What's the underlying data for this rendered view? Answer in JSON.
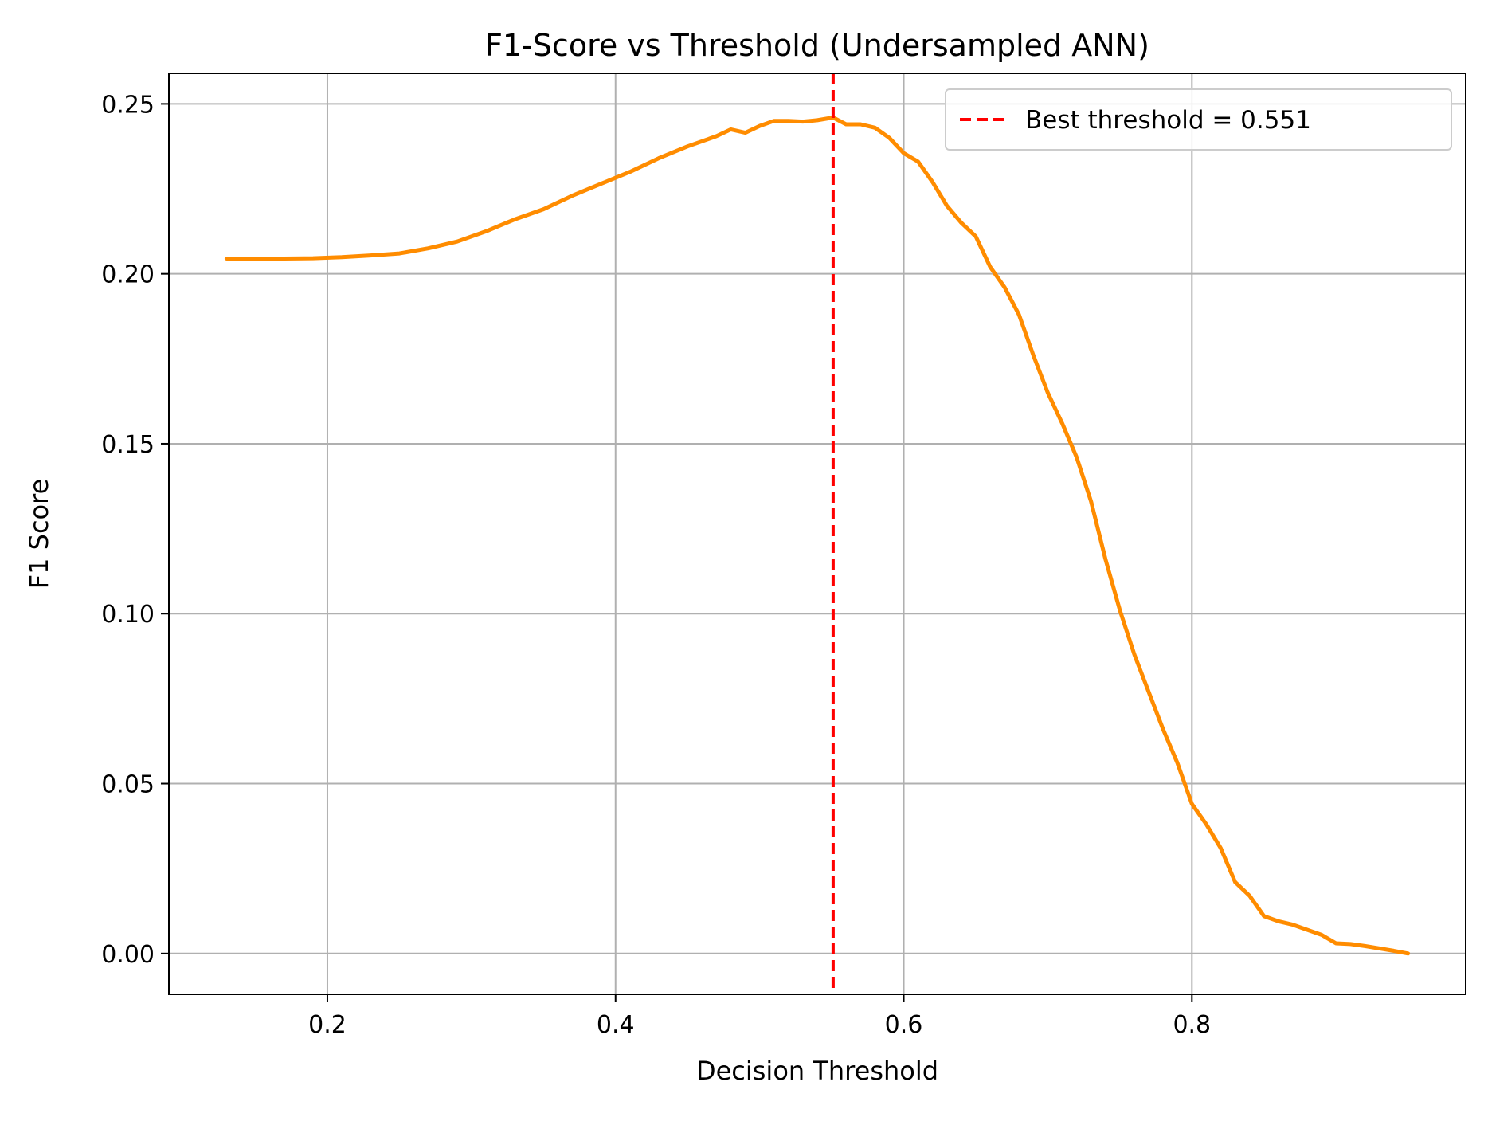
{
  "chart_data": {
    "type": "line",
    "title": "F1-Score vs Threshold (Undersampled ANN)",
    "xlabel": "Decision Threshold",
    "ylabel": "F1 Score",
    "xlim": [
      0.09,
      0.99
    ],
    "ylim": [
      -0.012,
      0.259
    ],
    "x_ticks": [
      0.2,
      0.4,
      0.6,
      0.8
    ],
    "x_tick_labels": [
      "0.2",
      "0.4",
      "0.6",
      "0.8"
    ],
    "y_ticks": [
      0.0,
      0.05,
      0.1,
      0.15,
      0.2,
      0.25
    ],
    "y_tick_labels": [
      "0.00",
      "0.05",
      "0.10",
      "0.15",
      "0.20",
      "0.25"
    ],
    "grid": true,
    "legend_position": "top-right",
    "series": [
      {
        "color": "#ff8c00",
        "x": [
          0.13,
          0.15,
          0.17,
          0.19,
          0.21,
          0.23,
          0.25,
          0.27,
          0.29,
          0.31,
          0.33,
          0.35,
          0.37,
          0.39,
          0.41,
          0.43,
          0.45,
          0.47,
          0.48,
          0.49,
          0.5,
          0.51,
          0.52,
          0.53,
          0.54,
          0.551,
          0.56,
          0.57,
          0.58,
          0.59,
          0.6,
          0.61,
          0.62,
          0.63,
          0.64,
          0.65,
          0.66,
          0.67,
          0.68,
          0.69,
          0.7,
          0.71,
          0.72,
          0.73,
          0.74,
          0.75,
          0.76,
          0.77,
          0.78,
          0.79,
          0.8,
          0.81,
          0.82,
          0.83,
          0.84,
          0.85,
          0.86,
          0.87,
          0.88,
          0.89,
          0.9,
          0.91,
          0.92,
          0.93,
          0.94,
          0.95
        ],
        "y": [
          0.2045,
          0.2044,
          0.2045,
          0.2046,
          0.2049,
          0.2054,
          0.206,
          0.2075,
          0.2095,
          0.2125,
          0.216,
          0.219,
          0.223,
          0.2265,
          0.23,
          0.234,
          0.2375,
          0.2405,
          0.2425,
          0.2415,
          0.2435,
          0.245,
          0.245,
          0.2448,
          0.2452,
          0.246,
          0.244,
          0.244,
          0.243,
          0.24,
          0.2355,
          0.233,
          0.227,
          0.22,
          0.215,
          0.211,
          0.202,
          0.196,
          0.188,
          0.176,
          0.165,
          0.156,
          0.146,
          0.133,
          0.116,
          0.101,
          0.088,
          0.077,
          0.066,
          0.056,
          0.044,
          0.038,
          0.031,
          0.021,
          0.017,
          0.011,
          0.0095,
          0.0085,
          0.007,
          0.0055,
          0.003,
          0.0028,
          0.0022,
          0.0015,
          0.0008,
          0.0
        ]
      }
    ],
    "reference_lines": [
      {
        "orientation": "vertical",
        "x": 0.551,
        "color": "#ff0000",
        "style": "dashed",
        "label": "Best threshold = 0.551"
      }
    ]
  }
}
